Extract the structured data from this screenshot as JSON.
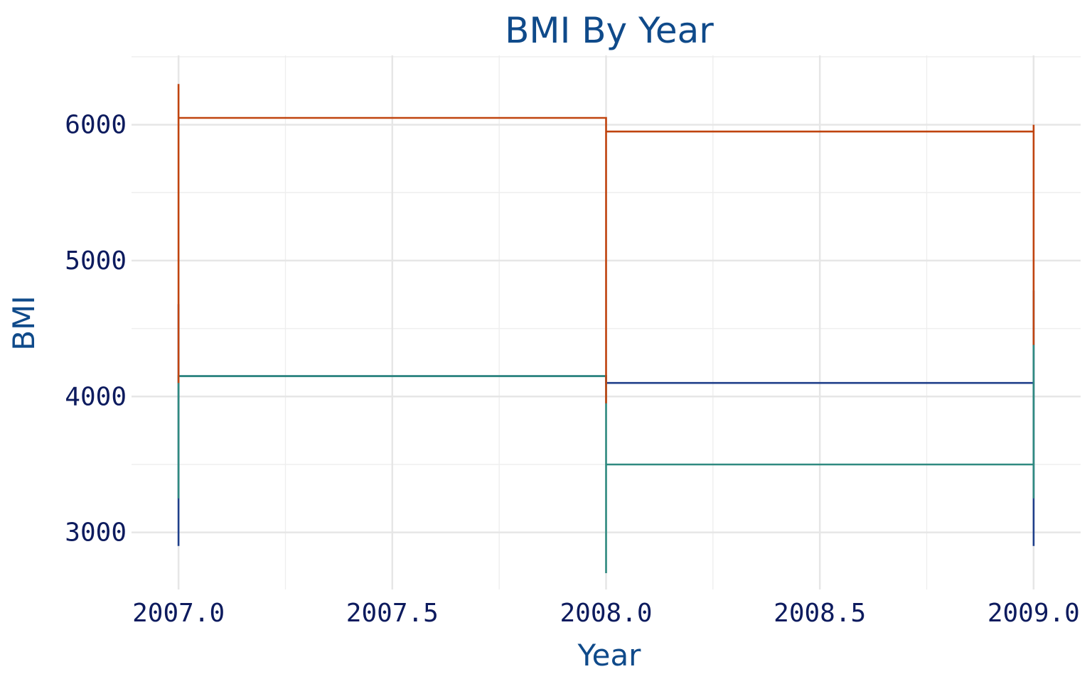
{
  "chart_data": {
    "type": "line",
    "title": "BMI By Year",
    "xlabel": "Year",
    "ylabel": "BMI",
    "xlim": [
      2006.89,
      2009.11
    ],
    "ylim": [
      2580,
      6510
    ],
    "x_ticks": [
      2007.0,
      2007.5,
      2008.0,
      2008.5,
      2009.0
    ],
    "x_tick_labels": [
      "2007.0",
      "2007.5",
      "2008.0",
      "2008.5",
      "2009.0"
    ],
    "y_ticks": [
      3000,
      4000,
      5000,
      6000
    ],
    "y_tick_labels": [
      "3000",
      "4000",
      "5000",
      "6000"
    ],
    "grid": true,
    "legend": "none",
    "series": [
      {
        "color": "#1f3f8a",
        "x": [
          2007.0,
          2007.0,
          2007.0,
          2008.0,
          2008.0,
          2008.0,
          2009.0,
          2009.0,
          2009.0
        ],
        "y": [
          2900,
          4680,
          4150,
          4150,
          4100,
          4100,
          4100,
          4780,
          2900
        ]
      },
      {
        "color": "#2f8a80",
        "x": [
          2007.0,
          2007.0,
          2007.0,
          2008.0,
          2008.0,
          2008.0,
          2009.0,
          2009.0,
          2009.0
        ],
        "y": [
          3250,
          3800,
          4150,
          4150,
          2700,
          3500,
          3500,
          4380,
          3250
        ]
      },
      {
        "color": "#c0440f",
        "x": [
          2007.0,
          2007.0,
          2007.0,
          2008.0,
          2008.0,
          2008.0,
          2009.0,
          2009.0,
          2009.0
        ],
        "y": [
          4100,
          6300,
          6050,
          6050,
          3950,
          5950,
          5950,
          6000,
          4380
        ]
      }
    ]
  }
}
